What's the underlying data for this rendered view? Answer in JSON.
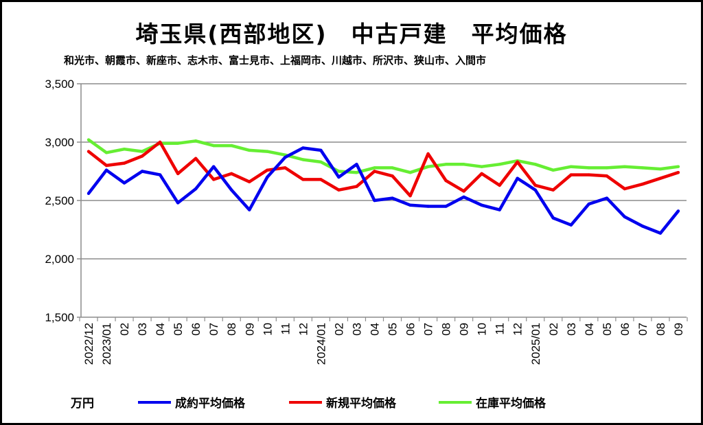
{
  "chart_data": {
    "type": "line",
    "title": "埼玉県(西部地区)　中古戸建　平均価格",
    "subtitle": "和光市、朝霞市、新座市、志木市、富士見市、上福岡市、川越市、所沢市、狭山市、入間市",
    "ylabel": "万円",
    "ylim": [
      1500,
      3500
    ],
    "yticks": [
      "1,500",
      "2,000",
      "2,500",
      "3,000",
      "3,500"
    ],
    "ytick_values": [
      1500,
      2000,
      2500,
      3000,
      3500
    ],
    "grid": true,
    "legend_position": "bottom",
    "x": [
      "2022/12",
      "2023/01",
      "02",
      "03",
      "04",
      "05",
      "06",
      "07",
      "08",
      "09",
      "10",
      "11",
      "12",
      "2024/01",
      "02",
      "03",
      "04",
      "05",
      "06",
      "07",
      "08",
      "09",
      "10",
      "11",
      "12",
      "2025/01",
      "02",
      "03",
      "04",
      "05",
      "06",
      "07",
      "08",
      "09"
    ],
    "series": [
      {
        "name": "成約平均価格",
        "color": "#0000ee",
        "values": [
          2560,
          2760,
          2650,
          2750,
          2720,
          2480,
          2600,
          2790,
          2590,
          2420,
          2700,
          2870,
          2950,
          2930,
          2700,
          2810,
          2500,
          2520,
          2460,
          2450,
          2450,
          2530,
          2460,
          2420,
          2690,
          2590,
          2350,
          2290,
          2470,
          2520,
          2360,
          2280,
          2220,
          2410
        ]
      },
      {
        "name": "新規平均価格",
        "color": "#ee0000",
        "values": [
          2920,
          2800,
          2820,
          2880,
          3000,
          2730,
          2860,
          2680,
          2730,
          2660,
          2760,
          2780,
          2680,
          2680,
          2590,
          2620,
          2750,
          2710,
          2540,
          2900,
          2670,
          2580,
          2730,
          2630,
          2830,
          2630,
          2590,
          2720,
          2720,
          2710,
          2600,
          2640,
          2690,
          2740
        ]
      },
      {
        "name": "在庫平均価格",
        "color": "#66ee33",
        "values": [
          3020,
          2910,
          2940,
          2920,
          2990,
          2990,
          3010,
          2970,
          2970,
          2930,
          2920,
          2890,
          2850,
          2830,
          2750,
          2740,
          2780,
          2780,
          2740,
          2790,
          2810,
          2810,
          2790,
          2810,
          2840,
          2810,
          2760,
          2790,
          2780,
          2780,
          2790,
          2780,
          2770,
          2790
        ]
      }
    ]
  }
}
